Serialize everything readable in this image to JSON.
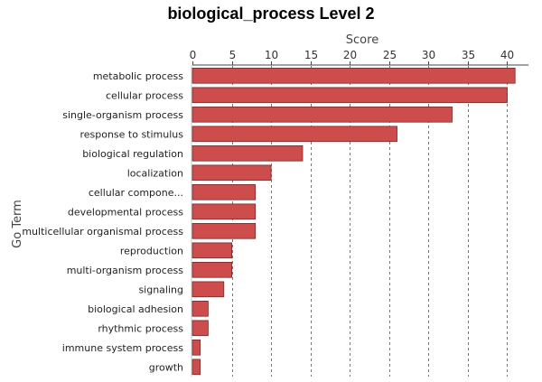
{
  "chart_data": {
    "type": "bar",
    "orientation": "horizontal",
    "title": "biological_process Level 2",
    "xlabel": "Score",
    "ylabel": "Go Term",
    "xlim": [
      0,
      42
    ],
    "xticks": [
      0,
      5,
      10,
      15,
      20,
      25,
      30,
      35,
      40
    ],
    "grid": "vertical dashed",
    "bar_color": "#cd4c4c",
    "bar_edge_color": "#7a2a2a",
    "categories": [
      "metabolic process",
      "cellular process",
      "single-organism process",
      "response to stimulus",
      "biological regulation",
      "localization",
      "cellular compone...",
      "developmental process",
      "multicellular organismal process",
      "reproduction",
      "multi-organism process",
      "signaling",
      "biological adhesion",
      "rhythmic process",
      "immune system process",
      "growth"
    ],
    "values": [
      41,
      40,
      33,
      26,
      14,
      10,
      8,
      8,
      8,
      5,
      5,
      4,
      2,
      2,
      1,
      1
    ]
  }
}
